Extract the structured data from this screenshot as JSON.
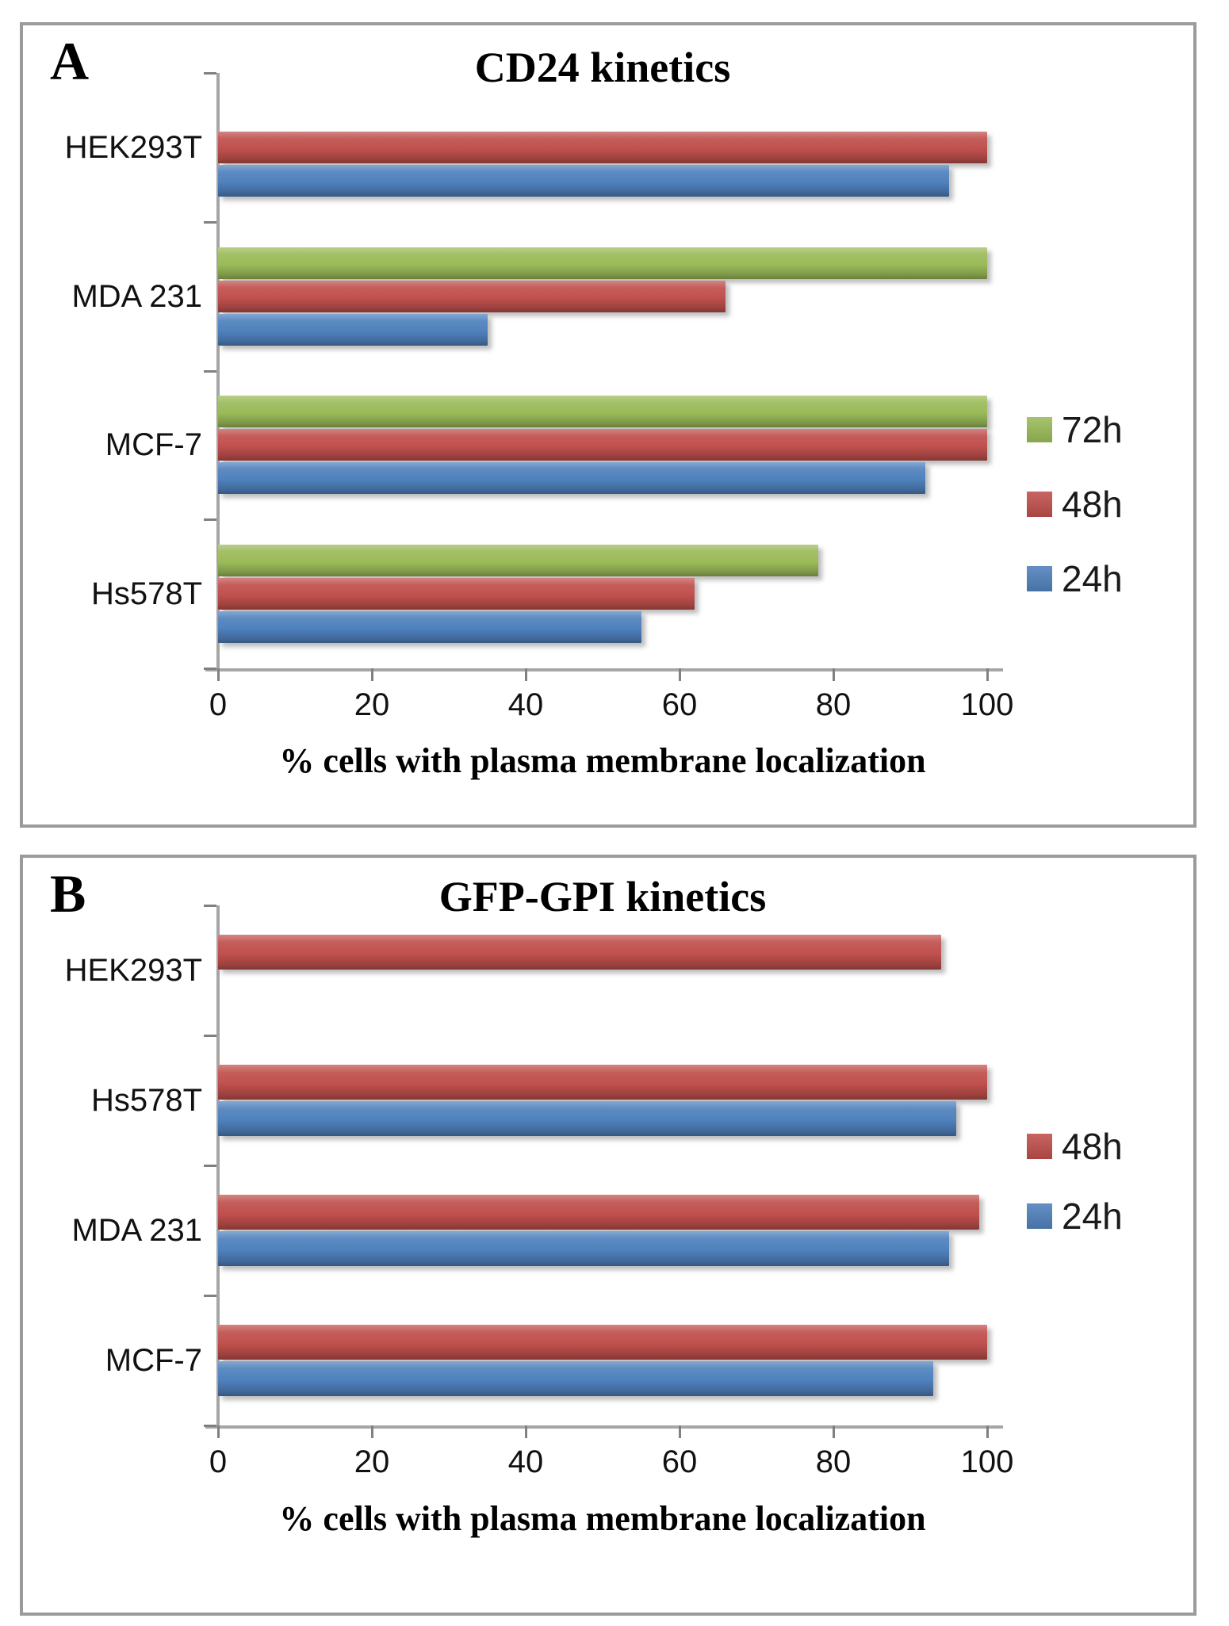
{
  "figure": {
    "colors": {
      "axis": "#a6a6a6",
      "tick": "#808080",
      "panel_border": "#9b9b9b",
      "text": "#000000",
      "series_green": "#9bbb59",
      "series_red": "#c0504d",
      "series_blue": "#4f81bd"
    }
  },
  "chart_data": [
    {
      "type": "bar",
      "orientation": "horizontal",
      "panel_label": "A",
      "title": "CD24 kinetics",
      "categories": [
        "HEK293T",
        "MDA 231",
        "MCF-7",
        "Hs578T"
      ],
      "series": [
        {
          "name": "72h",
          "color": "#9bbb59",
          "values": [
            null,
            100,
            100,
            78
          ]
        },
        {
          "name": "48h",
          "color": "#c0504d",
          "values": [
            100,
            66,
            100,
            62
          ]
        },
        {
          "name": "24h",
          "color": "#4f81bd",
          "values": [
            95,
            35,
            92,
            55
          ]
        }
      ],
      "xlabel": "% cells with plasma membrane localization",
      "xlim": [
        0,
        100
      ],
      "xticks": [
        0,
        20,
        40,
        60,
        80,
        100
      ],
      "legend": [
        "72h",
        "48h",
        "24h"
      ],
      "legend_position": "right",
      "grid": false
    },
    {
      "type": "bar",
      "orientation": "horizontal",
      "panel_label": "B",
      "title": "GFP-GPI kinetics",
      "categories": [
        "HEK293T",
        "Hs578T",
        "MDA 231",
        "MCF-7"
      ],
      "series": [
        {
          "name": "48h",
          "color": "#c0504d",
          "values": [
            94,
            100,
            99,
            100
          ]
        },
        {
          "name": "24h",
          "color": "#4f81bd",
          "values": [
            null,
            96,
            95,
            93
          ]
        }
      ],
      "xlabel": "% cells with plasma membrane localization",
      "xlim": [
        0,
        100
      ],
      "xticks": [
        0,
        20,
        40,
        60,
        80,
        100
      ],
      "legend": [
        "48h",
        "24h"
      ],
      "legend_position": "right",
      "grid": false
    }
  ]
}
